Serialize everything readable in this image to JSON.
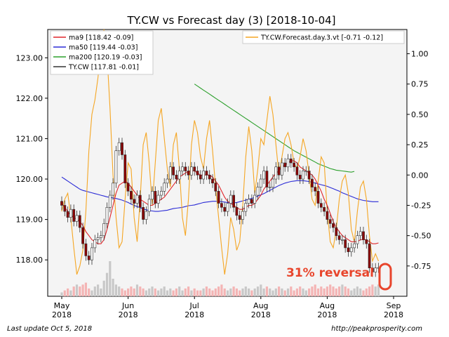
{
  "chart_data": {
    "type": "candlestick",
    "title": "TY.CW vs Forecast day (3)  [2018-10-04]",
    "x_tick_labels": [
      {
        "month": "May",
        "year": "2018"
      },
      {
        "month": "Jun",
        "year": "2018"
      },
      {
        "month": "Jul",
        "year": "2018"
      },
      {
        "month": "Aug",
        "year": "2018"
      },
      {
        "month": "Aug",
        "year": "2018"
      },
      {
        "month": "Sep",
        "year": "2018"
      }
    ],
    "x_tick_sessions": [
      0,
      22,
      44,
      66,
      88,
      110
    ],
    "y_left": {
      "ticks": [
        "118.00",
        "119.00",
        "120.00",
        "121.00",
        "122.00",
        "123.00"
      ],
      "range": [
        117.1,
        123.7
      ]
    },
    "y_right": {
      "ticks": [
        "-0.75",
        "-0.50",
        "-0.25",
        "0.00",
        "0.25",
        "0.50",
        "0.75",
        "1.00"
      ],
      "range": [
        -1.0,
        1.2
      ]
    },
    "legend_left_position": "top-left",
    "legend_right_position": "top-right",
    "legend_left": [
      {
        "label": "ma9 [118.42 -0.09]",
        "color": "#e0262b"
      },
      {
        "label": "ma50 [119.44 -0.03]",
        "color": "#2b2bd6"
      },
      {
        "label": "ma200 [120.19 -0.03]",
        "color": "#2ca02c"
      },
      {
        "label": "TY.CW [117.81 -0.01]",
        "color": "#333333"
      }
    ],
    "legend_right": [
      {
        "label": "TY.CW.Forecast.day.3.vt [-0.71 -0.12]",
        "color": "#f5a623"
      }
    ],
    "annotation": {
      "text": "31% reversal",
      "color": "#e8452c"
    },
    "colors": {
      "up_candle": "#ffffff",
      "down_candle": "#8b0000",
      "volume": "#c8c8c8",
      "volume_down": "#f4b4b4",
      "plot_bg": "#f4f4f4"
    },
    "price_closes": [
      119.35,
      119.2,
      119.05,
      119.25,
      118.95,
      119.1,
      118.8,
      118.4,
      118.1,
      118.0,
      118.3,
      118.5,
      118.55,
      118.6,
      118.9,
      119.3,
      119.6,
      119.9,
      120.7,
      120.9,
      120.6,
      119.9,
      119.7,
      119.5,
      119.4,
      119.6,
      119.3,
      119.0,
      119.2,
      119.5,
      119.7,
      119.4,
      119.6,
      119.7,
      119.9,
      120.0,
      120.3,
      120.1,
      120.0,
      120.2,
      120.3,
      120.2,
      120.1,
      120.3,
      120.2,
      120.1,
      120.0,
      120.2,
      120.1,
      120.0,
      119.9,
      119.7,
      119.4,
      119.3,
      119.2,
      119.4,
      119.6,
      119.3,
      119.1,
      119.0,
      119.2,
      119.4,
      119.5,
      119.4,
      119.6,
      119.8,
      120.0,
      120.2,
      119.8,
      119.8,
      120.0,
      120.3,
      120.1,
      120.4,
      120.3,
      120.5,
      120.4,
      120.3,
      120.1,
      120.0,
      120.2,
      120.2,
      120.0,
      119.8,
      119.7,
      119.4,
      119.3,
      119.2,
      119.0,
      118.9,
      118.8,
      118.6,
      118.5,
      118.5,
      118.3,
      118.2,
      118.3,
      118.4,
      118.6,
      118.7,
      118.5,
      118.4,
      117.8,
      117.7,
      117.8,
      117.81
    ],
    "ma9": [
      119.4,
      119.3,
      119.2,
      119.1,
      119.05,
      119.0,
      118.95,
      118.85,
      118.7,
      118.6,
      118.5,
      118.45,
      118.4,
      118.4,
      118.5,
      118.75,
      119.05,
      119.35,
      119.65,
      119.85,
      119.9,
      119.95,
      119.9,
      119.8,
      119.7,
      119.6,
      119.5,
      119.45,
      119.4,
      119.35,
      119.35,
      119.4,
      119.45,
      119.5,
      119.55,
      119.65,
      119.75,
      119.85,
      119.95,
      120.05,
      120.1,
      120.15,
      120.2,
      120.2,
      120.2,
      120.15,
      120.1,
      120.1,
      120.1,
      120.1,
      120.05,
      119.95,
      119.85,
      119.7,
      119.55,
      119.45,
      119.4,
      119.35,
      119.3,
      119.25,
      119.25,
      119.3,
      119.35,
      119.35,
      119.4,
      119.5,
      119.6,
      119.75,
      119.85,
      119.95,
      120.05,
      120.15,
      120.2,
      120.3,
      120.35,
      120.4,
      120.45,
      120.45,
      120.4,
      120.3,
      120.25,
      120.2,
      120.15,
      120.1,
      120.0,
      119.85,
      119.7,
      119.5,
      119.35,
      119.15,
      118.95,
      118.8,
      118.7,
      118.6,
      118.55,
      118.5,
      118.45,
      118.45,
      118.45,
      118.5,
      118.5,
      118.5,
      118.45,
      118.4,
      118.4,
      118.42
    ],
    "ma50": [
      120.05,
      120.0,
      119.95,
      119.9,
      119.85,
      119.8,
      119.75,
      119.72,
      119.7,
      119.68,
      119.66,
      119.64,
      119.62,
      119.6,
      119.58,
      119.56,
      119.55,
      119.53,
      119.52,
      119.5,
      119.48,
      119.45,
      119.42,
      119.38,
      119.35,
      119.32,
      119.29,
      119.26,
      119.24,
      119.22,
      119.21,
      119.2,
      119.2,
      119.21,
      119.22,
      119.23,
      119.25,
      119.27,
      119.28,
      119.29,
      119.3,
      119.32,
      119.34,
      119.35,
      119.36,
      119.38,
      119.4,
      119.42,
      119.43,
      119.44,
      119.45,
      119.45,
      119.45,
      119.44,
      119.43,
      119.42,
      119.41,
      119.41,
      119.42,
      119.44,
      119.46,
      119.48,
      119.5,
      119.52,
      119.55,
      119.58,
      119.61,
      119.64,
      119.68,
      119.72,
      119.76,
      119.8,
      119.84,
      119.87,
      119.9,
      119.92,
      119.94,
      119.95,
      119.96,
      119.96,
      119.96,
      119.95,
      119.94,
      119.92,
      119.9,
      119.88,
      119.86,
      119.84,
      119.82,
      119.79,
      119.76,
      119.73,
      119.7,
      119.66,
      119.63,
      119.6,
      119.57,
      119.54,
      119.51,
      119.49,
      119.47,
      119.46,
      119.45,
      119.44,
      119.44,
      119.44
    ],
    "ma200_start_session": 44,
    "ma200": [
      122.35,
      122.3,
      122.25,
      122.2,
      122.15,
      122.1,
      122.05,
      122.0,
      121.95,
      121.9,
      121.85,
      121.8,
      121.75,
      121.7,
      121.65,
      121.6,
      121.55,
      121.5,
      121.45,
      121.4,
      121.35,
      121.3,
      121.25,
      121.2,
      121.15,
      121.1,
      121.05,
      121.0,
      120.95,
      120.9,
      120.85,
      120.8,
      120.75,
      120.7,
      120.66,
      120.62,
      120.58,
      120.54,
      120.5,
      120.46,
      120.42,
      120.38,
      120.35,
      120.32,
      120.29,
      120.26,
      120.24,
      120.22,
      120.21,
      120.2,
      120.19,
      120.18,
      120.17,
      120.19
    ],
    "forecast": [
      -0.3,
      -0.2,
      -0.15,
      -0.35,
      -0.6,
      -0.82,
      -0.75,
      -0.62,
      -0.3,
      0.2,
      0.5,
      0.62,
      0.8,
      1.05,
      1.2,
      1.0,
      0.55,
      0.0,
      -0.35,
      -0.6,
      -0.55,
      -0.2,
      0.1,
      0.05,
      -0.35,
      -0.55,
      -0.2,
      0.25,
      0.35,
      0.1,
      -0.25,
      0.1,
      0.45,
      0.55,
      0.3,
      0.05,
      -0.1,
      0.25,
      0.35,
      0.05,
      -0.35,
      -0.5,
      -0.2,
      0.25,
      0.45,
      0.35,
      0.15,
      0.05,
      0.3,
      0.45,
      0.2,
      -0.1,
      -0.35,
      -0.6,
      -0.82,
      -0.65,
      -0.35,
      -0.45,
      -0.62,
      -0.55,
      -0.25,
      0.15,
      0.4,
      0.2,
      -0.15,
      0.05,
      0.3,
      0.25,
      0.45,
      0.65,
      0.5,
      0.25,
      0.0,
      0.15,
      0.3,
      0.35,
      0.25,
      0.1,
      0.05,
      0.15,
      0.3,
      0.2,
      0.0,
      -0.2,
      -0.25,
      -0.05,
      0.15,
      0.1,
      -0.3,
      -0.55,
      -0.6,
      -0.45,
      -0.2,
      -0.05,
      0.0,
      -0.15,
      -0.45,
      -0.55,
      -0.3,
      -0.1,
      -0.05,
      -0.2,
      -0.5,
      -0.71,
      -0.65,
      -0.71
    ],
    "volume": [
      2,
      3,
      4,
      3,
      5,
      6,
      5,
      6,
      7,
      4,
      3,
      5,
      6,
      4,
      8,
      12,
      18,
      9,
      6,
      5,
      4,
      3,
      4,
      5,
      4,
      6,
      5,
      4,
      3,
      4,
      5,
      4,
      3,
      4,
      5,
      3,
      4,
      3,
      4,
      5,
      3,
      4,
      5,
      3,
      4,
      3,
      3,
      4,
      5,
      4,
      3,
      4,
      5,
      6,
      4,
      3,
      4,
      5,
      4,
      3,
      4,
      5,
      4,
      3,
      4,
      5,
      6,
      4,
      5,
      4,
      3,
      4,
      5,
      4,
      3,
      4,
      5,
      3,
      4,
      5,
      4,
      3,
      4,
      5,
      6,
      4,
      5,
      4,
      5,
      6,
      5,
      4,
      5,
      6,
      5,
      4,
      3,
      4,
      5,
      4,
      3,
      4,
      5,
      6,
      5,
      6
    ]
  },
  "footer": {
    "last_update": "Last update Oct  5, 2018",
    "source": "http://peakprosperity.com"
  }
}
